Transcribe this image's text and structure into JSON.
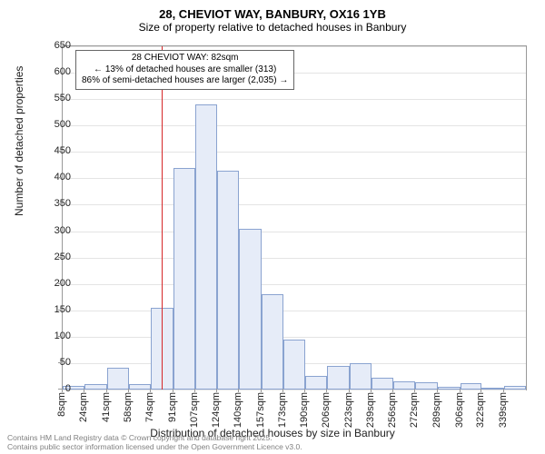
{
  "header": {
    "title": "28, CHEVIOT WAY, BANBURY, OX16 1YB",
    "subtitle": "Size of property relative to detached houses in Banbury"
  },
  "chart": {
    "type": "histogram",
    "y_axis": {
      "label": "Number of detached properties",
      "min": 0,
      "max": 650,
      "ticks": [
        0,
        50,
        100,
        150,
        200,
        250,
        300,
        350,
        400,
        450,
        500,
        550,
        600,
        650
      ]
    },
    "x_axis": {
      "label": "Distribution of detached houses by size in Banbury",
      "tick_labels": [
        "8sqm",
        "24sqm",
        "41sqm",
        "58sqm",
        "74sqm",
        "91sqm",
        "107sqm",
        "124sqm",
        "140sqm",
        "157sqm",
        "173sqm",
        "190sqm",
        "206sqm",
        "223sqm",
        "239sqm",
        "256sqm",
        "272sqm",
        "289sqm",
        "306sqm",
        "322sqm",
        "339sqm"
      ],
      "unit": "sqm"
    },
    "bars": {
      "bin_starts": [
        8,
        24,
        41,
        58,
        74,
        91,
        107,
        124,
        140,
        157,
        173,
        190,
        206,
        223,
        239,
        256,
        272,
        289,
        306,
        322,
        339,
        355
      ],
      "values": [
        7,
        10,
        42,
        10,
        155,
        420,
        540,
        415,
        305,
        180,
        95,
        25,
        45,
        50,
        22,
        15,
        13,
        5,
        12,
        0,
        7
      ],
      "fill_color": "#e6ecf8",
      "border_color": "#8aa3d0"
    },
    "reference": {
      "value": 82,
      "color": "#d62728",
      "annotation": {
        "line1": "28 CHEVIOT WAY: 82sqm",
        "line2": "← 13% of detached houses are smaller (313)",
        "line3": "86% of semi-detached houses are larger (2,035) →"
      }
    },
    "grid_color": "#e4e4e4",
    "background_color": "#ffffff"
  },
  "footer": {
    "line1": "Contains HM Land Registry data © Crown copyright and database right 2025.",
    "line2": "Contains public sector information licensed under the Open Government Licence v3.0."
  }
}
